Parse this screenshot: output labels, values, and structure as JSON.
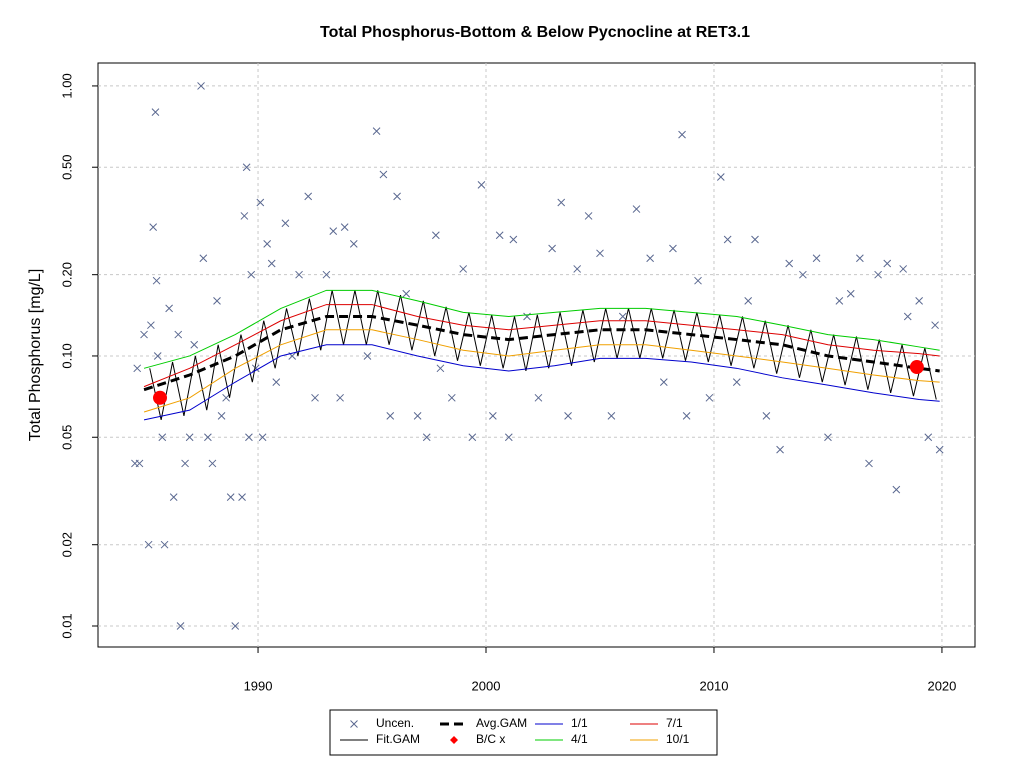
{
  "chart_data": {
    "type": "line",
    "title": "Total Phosphorus-Bottom & Below Pycnocline at RET3.1",
    "y_label": "Total Phosphorus [mg/L]",
    "xlim": [
      1982.98,
      2021.45
    ],
    "ylim": [
      0.00836,
      1.216
    ],
    "log_y": true,
    "grid": true,
    "legend": "bottom",
    "xticks": [
      1990,
      2000,
      2010,
      2020
    ],
    "yticks": [
      0.01,
      0.02,
      0.05,
      {
        "value": 0.1,
        "label": "0.10"
      },
      {
        "value": 0.2,
        "label": "0.20"
      },
      {
        "value": 0.5,
        "label": "0.50"
      },
      {
        "value": 1,
        "label": "1.00"
      }
    ],
    "series": [
      {
        "name": "Uncen.",
        "type": "scatter",
        "color": "#5a6890",
        "x": [
          1984.6,
          1984.7,
          1984.8,
          1985.0,
          1985.2,
          1985.3,
          1985.4,
          1985.5,
          1985.55,
          1985.6,
          1985.8,
          1985.9,
          1986.1,
          1986.3,
          1986.5,
          1986.6,
          1986.8,
          1987.0,
          1987.2,
          1987.5,
          1987.6,
          1987.8,
          1988.0,
          1988.2,
          1988.4,
          1988.6,
          1988.8,
          1989.0,
          1989.3,
          1989.4,
          1989.5,
          1989.6,
          1989.7,
          1989.9,
          1990.1,
          1990.2,
          1990.4,
          1990.6,
          1990.8,
          1991.2,
          1991.5,
          1991.8,
          1992.2,
          1992.5,
          1993.0,
          1993.3,
          1993.6,
          1993.8,
          1994.2,
          1994.8,
          1995.2,
          1995.5,
          1995.8,
          1996.1,
          1996.5,
          1997.0,
          1997.4,
          1997.8,
          1998.0,
          1998.5,
          1999.0,
          1999.4,
          1999.8,
          2000.3,
          2000.6,
          2001.0,
          2001.2,
          2001.8,
          2002.3,
          2002.9,
          2003.3,
          2003.6,
          2004.0,
          2004.5,
          2005.0,
          2005.5,
          2006.0,
          2006.6,
          2007.2,
          2007.8,
          2008.2,
          2008.6,
          2008.8,
          2009.3,
          2009.8,
          2010.3,
          2010.6,
          2011.0,
          2011.5,
          2011.8,
          2012.3,
          2012.9,
          2013.3,
          2013.9,
          2014.5,
          2015.0,
          2015.5,
          2016.0,
          2016.4,
          2016.8,
          2017.2,
          2017.6,
          2018.0,
          2018.3,
          2018.5,
          2019.0,
          2019.4,
          2019.7,
          2019.9
        ],
        "values": [
          0.04,
          0.09,
          0.04,
          0.12,
          0.02,
          0.13,
          0.3,
          0.8,
          0.19,
          0.1,
          0.05,
          0.02,
          0.15,
          0.03,
          0.12,
          0.01,
          0.04,
          0.05,
          0.11,
          1.0,
          0.23,
          0.05,
          0.04,
          0.16,
          0.06,
          0.07,
          0.03,
          0.01,
          0.03,
          0.33,
          0.5,
          0.05,
          0.2,
          0.09,
          0.37,
          0.05,
          0.26,
          0.22,
          0.08,
          0.31,
          0.1,
          0.2,
          0.39,
          0.07,
          0.2,
          0.29,
          0.07,
          0.3,
          0.26,
          0.1,
          0.68,
          0.47,
          0.06,
          0.39,
          0.17,
          0.06,
          0.05,
          0.28,
          0.09,
          0.07,
          0.21,
          0.05,
          0.43,
          0.06,
          0.28,
          0.05,
          0.27,
          0.14,
          0.07,
          0.25,
          0.37,
          0.06,
          0.21,
          0.33,
          0.24,
          0.06,
          0.14,
          0.35,
          0.23,
          0.08,
          0.25,
          0.66,
          0.06,
          0.19,
          0.07,
          0.46,
          0.27,
          0.08,
          0.16,
          0.27,
          0.06,
          0.045,
          0.22,
          0.2,
          0.23,
          0.05,
          0.16,
          0.17,
          0.23,
          0.04,
          0.2,
          0.22,
          0.032,
          0.21,
          0.14,
          0.16,
          0.05,
          0.13,
          0.045
        ]
      },
      {
        "name": "Fit.GAM",
        "type": "line",
        "color": "#000000",
        "width": 1,
        "x": [
          1985.25,
          1985.75,
          1986.25,
          1986.75,
          1987.25,
          1987.75,
          1988.25,
          1988.75,
          1989.25,
          1989.75,
          1990.25,
          1990.75,
          1991.25,
          1991.75,
          1992.25,
          1992.75,
          1993.25,
          1993.75,
          1994.25,
          1994.75,
          1995.25,
          1995.75,
          1996.25,
          1996.75,
          1997.25,
          1997.75,
          1998.25,
          1998.75,
          1999.25,
          1999.75,
          2000.25,
          2000.75,
          2001.25,
          2001.75,
          2002.25,
          2002.75,
          2003.25,
          2003.75,
          2004.25,
          2004.75,
          2005.25,
          2005.75,
          2006.25,
          2006.75,
          2007.25,
          2007.75,
          2008.25,
          2008.75,
          2009.25,
          2009.75,
          2010.25,
          2010.75,
          2011.25,
          2011.75,
          2012.25,
          2012.75,
          2013.25,
          2013.75,
          2014.25,
          2014.75,
          2015.25,
          2015.75,
          2016.25,
          2016.75,
          2017.25,
          2017.75,
          2018.25,
          2018.75,
          2019.25,
          2019.75
        ],
        "values": [
          0.09,
          0.058,
          0.095,
          0.06,
          0.1,
          0.063,
          0.11,
          0.07,
          0.12,
          0.08,
          0.135,
          0.09,
          0.15,
          0.1,
          0.163,
          0.105,
          0.175,
          0.11,
          0.175,
          0.11,
          0.175,
          0.11,
          0.168,
          0.105,
          0.16,
          0.1,
          0.152,
          0.096,
          0.145,
          0.092,
          0.142,
          0.09,
          0.14,
          0.088,
          0.142,
          0.09,
          0.145,
          0.092,
          0.148,
          0.095,
          0.15,
          0.098,
          0.15,
          0.098,
          0.15,
          0.098,
          0.148,
          0.096,
          0.145,
          0.095,
          0.142,
          0.092,
          0.14,
          0.09,
          0.135,
          0.086,
          0.13,
          0.083,
          0.125,
          0.08,
          0.12,
          0.078,
          0.118,
          0.075,
          0.115,
          0.073,
          0.11,
          0.071,
          0.107,
          0.069
        ]
      },
      {
        "name": "Avg.GAM",
        "type": "line",
        "color": "#000000",
        "width": 3,
        "dashed": true,
        "x": [
          1985,
          1987,
          1989,
          1991,
          1993,
          1995,
          1997,
          1999,
          2001,
          2003,
          2005,
          2007,
          2009,
          2011,
          2013,
          2015,
          2017,
          2019,
          2019.9
        ],
        "values": [
          0.075,
          0.085,
          0.1,
          0.125,
          0.14,
          0.14,
          0.13,
          0.12,
          0.115,
          0.12,
          0.125,
          0.125,
          0.12,
          0.115,
          0.11,
          0.1,
          0.095,
          0.09,
          0.088
        ]
      },
      {
        "name": "B/C x",
        "type": "points",
        "color": "#ff0000",
        "x": [
          1985.7,
          2018.9
        ],
        "values": [
          0.07,
          0.091
        ]
      },
      {
        "name": "1/1",
        "type": "line",
        "color": "#0000cc",
        "width": 1,
        "x": [
          1985,
          1987,
          1989,
          1991,
          1993,
          1995,
          1997,
          1999,
          2001,
          2003,
          2005,
          2007,
          2009,
          2011,
          2013,
          2015,
          2017,
          2019,
          2019.9
        ],
        "values": [
          0.058,
          0.063,
          0.08,
          0.1,
          0.11,
          0.11,
          0.1,
          0.092,
          0.088,
          0.092,
          0.098,
          0.098,
          0.095,
          0.09,
          0.083,
          0.078,
          0.073,
          0.069,
          0.068
        ]
      },
      {
        "name": "4/1",
        "type": "line",
        "color": "#00cc00",
        "width": 1,
        "x": [
          1985,
          1987,
          1989,
          1991,
          1993,
          1995,
          1997,
          1999,
          2001,
          2003,
          2005,
          2007,
          2009,
          2011,
          2013,
          2015,
          2017,
          2019,
          2019.9
        ],
        "values": [
          0.09,
          0.1,
          0.12,
          0.15,
          0.175,
          0.175,
          0.16,
          0.145,
          0.14,
          0.145,
          0.15,
          0.15,
          0.145,
          0.14,
          0.13,
          0.12,
          0.115,
          0.108,
          0.105
        ]
      },
      {
        "name": "7/1",
        "type": "line",
        "color": "#dd0000",
        "width": 1,
        "x": [
          1985,
          1987,
          1989,
          1991,
          1993,
          1995,
          1997,
          1999,
          2001,
          2003,
          2005,
          2007,
          2009,
          2011,
          2013,
          2015,
          2017,
          2019,
          2019.9
        ],
        "values": [
          0.077,
          0.09,
          0.11,
          0.135,
          0.155,
          0.155,
          0.14,
          0.13,
          0.125,
          0.13,
          0.135,
          0.135,
          0.13,
          0.125,
          0.12,
          0.11,
          0.105,
          0.102,
          0.1
        ]
      },
      {
        "name": "10/1",
        "type": "line",
        "color": "#f0a000",
        "width": 1,
        "x": [
          1985,
          1987,
          1989,
          1991,
          1993,
          1995,
          1997,
          1999,
          2001,
          2003,
          2005,
          2007,
          2009,
          2011,
          2013,
          2015,
          2017,
          2019,
          2019.9
        ],
        "values": [
          0.062,
          0.07,
          0.09,
          0.11,
          0.125,
          0.125,
          0.115,
          0.105,
          0.1,
          0.105,
          0.11,
          0.11,
          0.105,
          0.1,
          0.095,
          0.09,
          0.085,
          0.081,
          0.08
        ]
      }
    ]
  }
}
